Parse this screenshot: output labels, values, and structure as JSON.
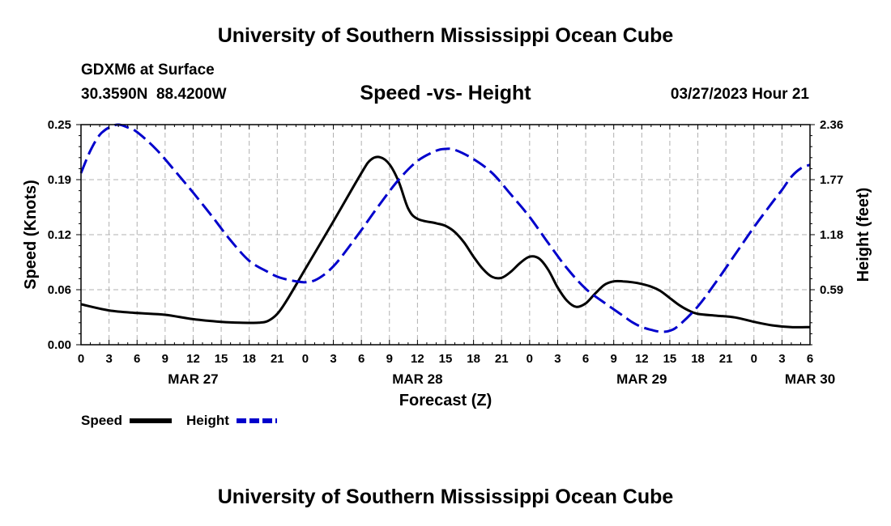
{
  "header": {
    "title": "University of Southern Mississippi Ocean Cube",
    "station": "GDXM6 at Surface",
    "coords": "30.3590N  88.4200W",
    "subtitle": "Speed -vs- Height",
    "datetime": "03/27/2023 Hour 21"
  },
  "footer": {
    "title": "University of Southern Mississippi Ocean Cube"
  },
  "colors": {
    "speed": "#000000",
    "height": "#0000cc",
    "grid": "#b0b0b0"
  },
  "chart_data": {
    "type": "line",
    "title": "Speed -vs- Height",
    "xlabel": "Forecast (Z)",
    "ylabel": "Speed (Knots)",
    "y2label": "Height (feet)",
    "x_unit": "forecast hours from MAR 27 00Z",
    "xlim": [
      0,
      78
    ],
    "ylim": [
      0,
      0.25
    ],
    "y2lim": [
      0,
      2.36
    ],
    "x_ticks": [
      0,
      3,
      6,
      9,
      12,
      15,
      18,
      21,
      24,
      27,
      30,
      33,
      36,
      39,
      42,
      45,
      48,
      51,
      54,
      57,
      60,
      63,
      66,
      69,
      72,
      75,
      78
    ],
    "x_tick_labels": [
      "0",
      "3",
      "6",
      "9",
      "12",
      "15",
      "18",
      "21",
      "0",
      "3",
      "6",
      "9",
      "12",
      "15",
      "18",
      "21",
      "0",
      "3",
      "6",
      "9",
      "12",
      "15",
      "18",
      "21",
      "0",
      "3",
      "6"
    ],
    "date_labels": [
      {
        "x": 12,
        "label": "MAR 27"
      },
      {
        "x": 36,
        "label": "MAR 28"
      },
      {
        "x": 60,
        "label": "MAR 29"
      },
      {
        "x": 78,
        "label": "MAR 30"
      }
    ],
    "y_ticks": [
      0,
      0.0625,
      0.125,
      0.1875,
      0.25
    ],
    "y_tick_labels": [
      "0.00",
      "0.06",
      "0.12",
      "0.19",
      "0.25"
    ],
    "y2_ticks": [
      0.59,
      1.18,
      1.77,
      2.36
    ],
    "y2_tick_labels": [
      "0.59",
      "1.18",
      "1.77",
      "2.36"
    ],
    "grid": true,
    "legend_position": "bottom-left",
    "series": [
      {
        "name": "Speed",
        "axis": "left",
        "style": "solid",
        "x": [
          0,
          3,
          6,
          9,
          12,
          15,
          17,
          19,
          20,
          21,
          22,
          24,
          27,
          30,
          31,
          32,
          33,
          34,
          35,
          36,
          38,
          39,
          40,
          41,
          42,
          43,
          44,
          45,
          46,
          47,
          48,
          49,
          50,
          51,
          52,
          53,
          54,
          55,
          56,
          57,
          58,
          59,
          60,
          61,
          62,
          63,
          64,
          65,
          66,
          68,
          70,
          72,
          74,
          76,
          78
        ],
        "values": [
          0.046,
          0.039,
          0.036,
          0.034,
          0.029,
          0.026,
          0.025,
          0.025,
          0.027,
          0.035,
          0.05,
          0.086,
          0.14,
          0.195,
          0.21,
          0.213,
          0.205,
          0.185,
          0.155,
          0.143,
          0.138,
          0.135,
          0.128,
          0.116,
          0.1,
          0.086,
          0.077,
          0.076,
          0.083,
          0.093,
          0.1,
          0.098,
          0.085,
          0.065,
          0.05,
          0.043,
          0.047,
          0.058,
          0.068,
          0.072,
          0.072,
          0.071,
          0.069,
          0.066,
          0.061,
          0.053,
          0.045,
          0.039,
          0.035,
          0.033,
          0.031,
          0.026,
          0.022,
          0.02,
          0.02
        ]
      },
      {
        "name": "Height",
        "axis": "right",
        "style": "dashed",
        "x": [
          0,
          1,
          2,
          3,
          4,
          5,
          6,
          8,
          10,
          12,
          14,
          16,
          18,
          20,
          21,
          22,
          23,
          24,
          25,
          26,
          27,
          28,
          30,
          32,
          34,
          36,
          38,
          39,
          40,
          42,
          44,
          46,
          48,
          50,
          52,
          54,
          56,
          58,
          59,
          60,
          61,
          62,
          63,
          64,
          66,
          68,
          70,
          72,
          74,
          75,
          76,
          77,
          78
        ],
        "values": [
          1.84,
          2.08,
          2.25,
          2.33,
          2.36,
          2.33,
          2.28,
          2.1,
          1.87,
          1.63,
          1.38,
          1.12,
          0.9,
          0.78,
          0.73,
          0.7,
          0.68,
          0.67,
          0.69,
          0.75,
          0.84,
          0.96,
          1.23,
          1.51,
          1.77,
          1.97,
          2.08,
          2.1,
          2.09,
          1.99,
          1.84,
          1.61,
          1.37,
          1.09,
          0.82,
          0.6,
          0.45,
          0.31,
          0.24,
          0.19,
          0.16,
          0.14,
          0.15,
          0.21,
          0.41,
          0.68,
          0.97,
          1.26,
          1.53,
          1.66,
          1.8,
          1.89,
          1.93
        ]
      }
    ]
  },
  "legend": {
    "speed_label": "Speed",
    "height_label": "Height"
  }
}
